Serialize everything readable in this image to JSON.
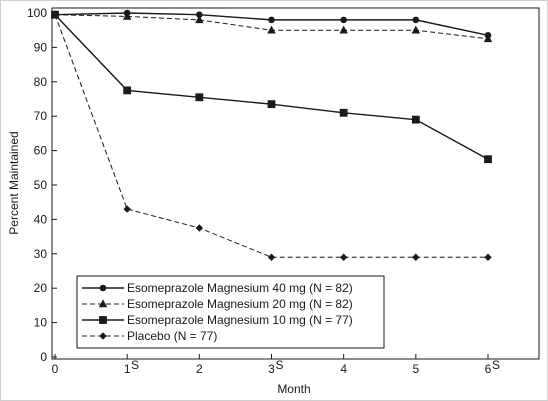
{
  "chart_data": {
    "type": "line",
    "title": "",
    "xlabel": "Month",
    "ylabel": "Percent Maintained",
    "xlim": [
      0,
      6
    ],
    "ylim": [
      0,
      100
    ],
    "x_ticks": [
      "0",
      "1",
      "2",
      "3",
      "4",
      "5",
      "6"
    ],
    "x_tick_suffix": {
      "1": "S",
      "3": "S",
      "6": "S"
    },
    "y_ticks": [
      "0",
      "10",
      "20",
      "30",
      "40",
      "50",
      "60",
      "70",
      "80",
      "90",
      "100"
    ],
    "grid": false,
    "legend_position": "bottom-left",
    "series": [
      {
        "name": "Esomeprazole Magnesium 40 mg (N = 82)",
        "line_style": "solid",
        "marker": "circle",
        "color": "#1a1a1a",
        "x": [
          0,
          1,
          2,
          3,
          4,
          5,
          6
        ],
        "y": [
          99.5,
          100,
          99.5,
          98,
          98,
          98,
          93.5
        ]
      },
      {
        "name": "Esomeprazole Magnesium 20 mg (N = 82)",
        "line_style": "dashed",
        "marker": "triangle",
        "color": "#1a1a1a",
        "x": [
          0,
          1,
          2,
          3,
          4,
          5,
          6
        ],
        "y": [
          99.5,
          99,
          98,
          95,
          95,
          95,
          92.5
        ]
      },
      {
        "name": "Esomeprazole Magnesium 10 mg (N = 77)",
        "line_style": "solid",
        "marker": "square",
        "color": "#1a1a1a",
        "x": [
          0,
          1,
          2,
          3,
          4,
          5,
          6
        ],
        "y": [
          99.5,
          77.5,
          75.5,
          73.5,
          71,
          69,
          57.5
        ]
      },
      {
        "name": "Placebo (N = 77)",
        "line_style": "dashed",
        "marker": "diamond",
        "color": "#1a1a1a",
        "x": [
          0,
          1,
          2,
          3,
          4,
          5,
          6
        ],
        "y": [
          99.5,
          43,
          37.5,
          29,
          29,
          29,
          29
        ]
      }
    ]
  }
}
